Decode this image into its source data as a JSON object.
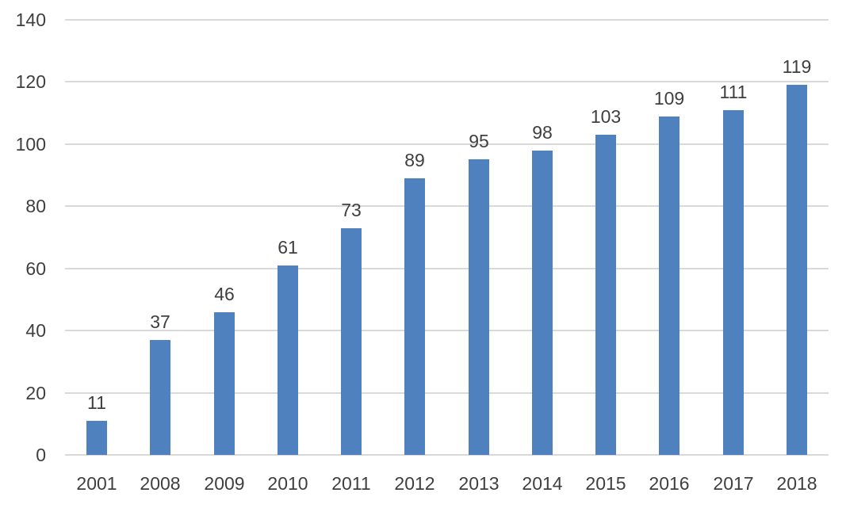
{
  "chart_data": {
    "type": "bar",
    "title": "",
    "xlabel": "",
    "ylabel": "",
    "categories": [
      "2001",
      "2008",
      "2009",
      "2010",
      "2011",
      "2012",
      "2013",
      "2014",
      "2015",
      "2016",
      "2017",
      "2018"
    ],
    "values": [
      11,
      37,
      46,
      61,
      73,
      89,
      95,
      98,
      103,
      109,
      111,
      119
    ],
    "data_labels": [
      11,
      37,
      46,
      61,
      73,
      89,
      95,
      98,
      103,
      109,
      111,
      119
    ],
    "ylim": [
      0,
      140
    ],
    "yticks": [
      0,
      20,
      40,
      60,
      80,
      100,
      120,
      140
    ],
    "grid": true,
    "legend": "none",
    "colors": {
      "bar": "#4e81bd",
      "gridline": "#d9d9d9",
      "label_text": "#3f3f3f"
    }
  }
}
